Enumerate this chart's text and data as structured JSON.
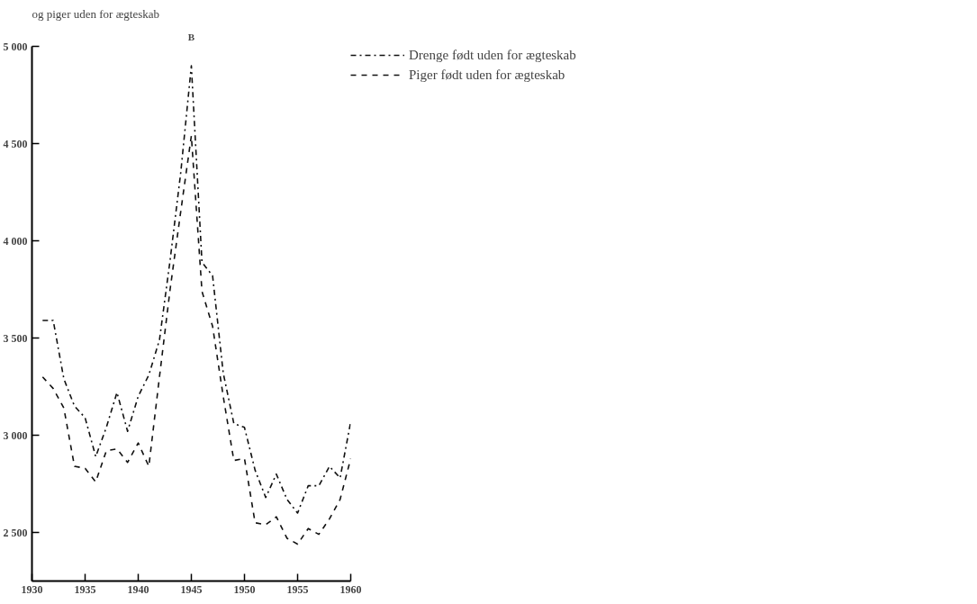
{
  "chart_data": {
    "type": "line",
    "title": "og piger uden for ægteskab",
    "subtitle": "B",
    "x": [
      1931,
      1932,
      1933,
      1934,
      1935,
      1936,
      1937,
      1938,
      1939,
      1940,
      1941,
      1942,
      1943,
      1944,
      1945,
      1946,
      1947,
      1948,
      1949,
      1950,
      1951,
      1952,
      1953,
      1954,
      1955,
      1956,
      1957,
      1958,
      1959,
      1960
    ],
    "series": [
      {
        "name": "Drenge født uden for ægteskab",
        "color": "#111111",
        "line_style": "dashdot",
        "values": [
          3590,
          3590,
          3290,
          3150,
          3090,
          2890,
          3040,
          3220,
          3020,
          3200,
          3310,
          3490,
          3900,
          4350,
          4900,
          3890,
          3820,
          3320,
          3060,
          3040,
          2820,
          2680,
          2800,
          2670,
          2600,
          2740,
          2740,
          2840,
          2780,
          3070
        ]
      },
      {
        "name": "Piger født uden for ægteskab",
        "color": "#111111",
        "line_style": "dashed",
        "values": [
          3300,
          3240,
          3140,
          2840,
          2830,
          2760,
          2920,
          2930,
          2860,
          2960,
          2840,
          3300,
          3750,
          4150,
          4540,
          3740,
          3560,
          3200,
          2870,
          2880,
          2550,
          2540,
          2580,
          2470,
          2440,
          2520,
          2490,
          2570,
          2670,
          2880
        ]
      }
    ],
    "xlim": [
      1930,
      1960
    ],
    "xticks": [
      1930,
      1935,
      1940,
      1945,
      1950,
      1955,
      1960
    ],
    "ylim": [
      2250,
      5000
    ],
    "yticks": [
      {
        "value": 2500,
        "label": "2 500"
      },
      {
        "value": 3000,
        "label": "3 000"
      },
      {
        "value": 3500,
        "label": "3 500"
      },
      {
        "value": 4000,
        "label": "4 000"
      },
      {
        "value": 4500,
        "label": "4 500"
      },
      {
        "value": 5000,
        "label": "5 000"
      }
    ],
    "grid": false,
    "legend": "top right",
    "marker": "none"
  }
}
